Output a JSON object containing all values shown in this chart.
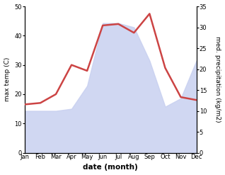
{
  "months": [
    "Jan",
    "Feb",
    "Mar",
    "Apr",
    "May",
    "Jun",
    "Jul",
    "Aug",
    "Sep",
    "Oct",
    "Nov",
    "Dec"
  ],
  "temp": [
    16.5,
    17.0,
    20.0,
    30.0,
    28.0,
    43.5,
    44.0,
    41.0,
    47.5,
    29.0,
    19.0,
    18.0
  ],
  "precip": [
    10.0,
    10.0,
    10.0,
    10.5,
    16.0,
    31.0,
    31.0,
    30.0,
    22.0,
    11.0,
    13.0,
    22.0
  ],
  "temp_ylim": [
    0,
    50
  ],
  "precip_ylim": [
    0,
    35
  ],
  "temp_color": "#cc4444",
  "precip_fill_color": "#c8d0f0",
  "precip_fill_alpha": 0.85,
  "xlabel": "date (month)",
  "ylabel_left": "max temp (C)",
  "ylabel_right": "med. precipitation (kg/m2)",
  "temp_yticks": [
    0,
    10,
    20,
    30,
    40,
    50
  ],
  "precip_yticks": [
    0,
    5,
    10,
    15,
    20,
    25,
    30,
    35
  ],
  "bg_color": "#ffffff",
  "temp_linewidth": 1.8,
  "fontsize_ticks": 6.0,
  "fontsize_label": 6.5,
  "fontsize_xlabel": 7.5
}
